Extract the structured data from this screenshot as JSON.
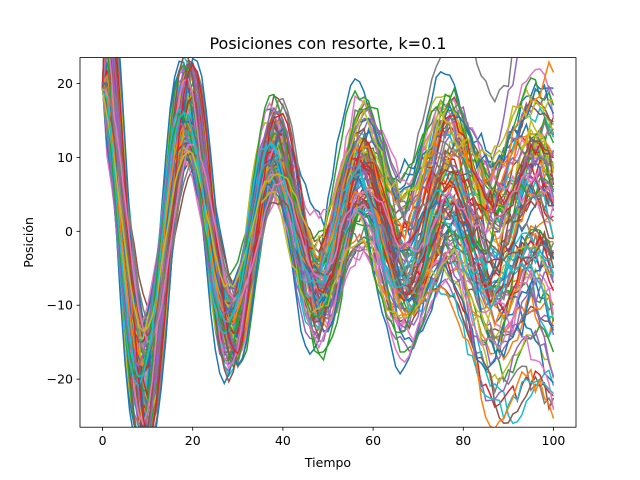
{
  "chart_data": {
    "type": "line",
    "title": "Posiciones con resorte, k=0.1",
    "xlabel": "Tiempo",
    "ylabel": "Posición",
    "xlim": [
      -5,
      105
    ],
    "ylim": [
      -26.5,
      23.5
    ],
    "xticks": [
      0,
      20,
      40,
      60,
      80,
      100
    ],
    "yticks": [
      -20,
      -10,
      0,
      10,
      20
    ],
    "xtick_labels": [
      "0",
      "20",
      "40",
      "60",
      "80",
      "100"
    ],
    "ytick_labels": [
      "−20",
      "−10",
      "0",
      "10",
      "20"
    ],
    "grid": false,
    "legend": "none",
    "x_range": [
      0,
      100
    ],
    "x_step": 1,
    "series_count": 100,
    "envelope": {
      "note_t": [
        0,
        7,
        17,
        27,
        36,
        46,
        55,
        65,
        75,
        85,
        95,
        100
      ],
      "center": [
        19.5,
        -19.5,
        14.5,
        -12.5,
        9,
        -7,
        5,
        -5,
        2,
        -3,
        1,
        0
      ],
      "spread": [
        0.5,
        4.5,
        6.5,
        6,
        6.5,
        6,
        7,
        7,
        8,
        8,
        8.5,
        8
      ]
    },
    "palette": [
      "#1f77b4",
      "#ff7f0e",
      "#2ca02c",
      "#d62728",
      "#9467bd",
      "#8c564b",
      "#e377c2",
      "#7f7f7f",
      "#bcbd22",
      "#17becf"
    ]
  }
}
